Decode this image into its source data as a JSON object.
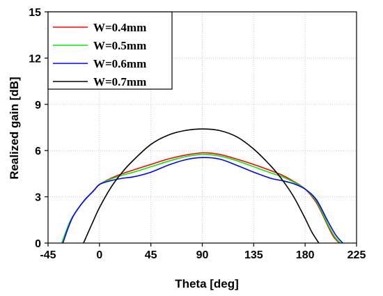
{
  "chart_data": {
    "type": "line",
    "xlabel": "Theta [deg]",
    "ylabel": "Realized gain [dB]",
    "xlim": [
      -45,
      225
    ],
    "ylim": [
      0,
      15
    ],
    "xticks": [
      -45,
      0,
      45,
      90,
      135,
      180,
      225
    ],
    "yticks": [
      0,
      3,
      6,
      9,
      12,
      15
    ],
    "xtick_labels": [
      "-45",
      "0",
      "45",
      "90",
      "135",
      "180",
      "225"
    ],
    "ytick_labels": [
      "0",
      "3",
      "6",
      "9",
      "12",
      "15"
    ],
    "grid": true,
    "grid_style": "dotted",
    "legend_position": "top-left",
    "series": [
      {
        "name": "W=0.4mm",
        "color": "#ff0000",
        "x": [
          -33,
          -25,
          -15,
          -5,
          0,
          10,
          20,
          30,
          45,
          60,
          75,
          90,
          105,
          120,
          135,
          150,
          160,
          170,
          180,
          190,
          200,
          205,
          210
        ],
        "y": [
          0,
          1.5,
          2.6,
          3.4,
          3.8,
          4.2,
          4.5,
          4.75,
          5.1,
          5.45,
          5.7,
          5.85,
          5.75,
          5.45,
          5.1,
          4.7,
          4.4,
          4.0,
          3.5,
          2.6,
          1.1,
          0.4,
          0
        ]
      },
      {
        "name": "W=0.5mm",
        "color": "#00ee00",
        "x": [
          -33,
          -25,
          -15,
          -5,
          0,
          10,
          20,
          30,
          45,
          60,
          75,
          90,
          105,
          120,
          135,
          150,
          160,
          170,
          180,
          190,
          200,
          206,
          211
        ],
        "y": [
          0,
          1.5,
          2.6,
          3.4,
          3.8,
          4.15,
          4.4,
          4.6,
          4.95,
          5.3,
          5.6,
          5.75,
          5.65,
          5.35,
          4.95,
          4.55,
          4.3,
          3.95,
          3.5,
          2.7,
          1.2,
          0.4,
          0
        ]
      },
      {
        "name": "W=0.6mm",
        "color": "#0000ff",
        "x": [
          -32,
          -24,
          -14,
          -5,
          0,
          10,
          20,
          30,
          45,
          60,
          75,
          90,
          105,
          120,
          135,
          150,
          160,
          170,
          180,
          190,
          200,
          207,
          213
        ],
        "y": [
          0,
          1.6,
          2.7,
          3.4,
          3.8,
          4.05,
          4.2,
          4.3,
          4.6,
          5.05,
          5.4,
          5.55,
          5.45,
          5.05,
          4.6,
          4.2,
          4.05,
          3.85,
          3.5,
          2.8,
          1.4,
          0.5,
          0
        ]
      },
      {
        "name": "W=0.7mm",
        "color": "#000000",
        "x": [
          -14,
          -5,
          0,
          10,
          20,
          30,
          45,
          60,
          75,
          90,
          105,
          120,
          135,
          150,
          160,
          170,
          180,
          186,
          192
        ],
        "y": [
          0,
          1.5,
          2.3,
          3.6,
          4.6,
          5.4,
          6.4,
          7.0,
          7.3,
          7.4,
          7.3,
          6.9,
          6.1,
          5.0,
          4.1,
          3.0,
          1.6,
          0.7,
          0
        ]
      }
    ]
  }
}
